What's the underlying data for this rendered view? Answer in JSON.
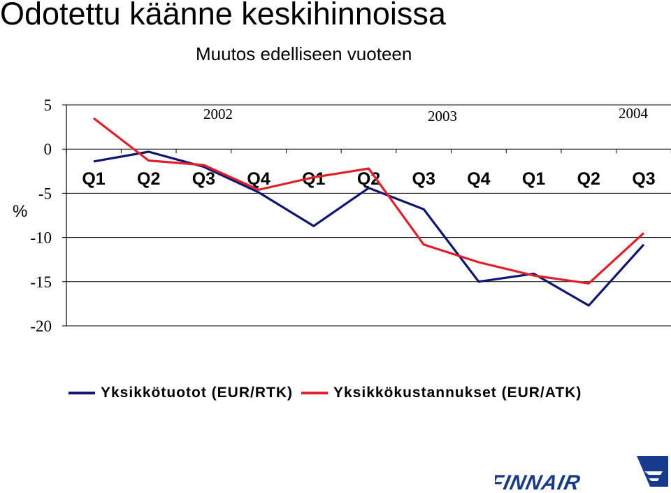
{
  "header": {
    "title": "Odotettu käänne keskihinnoissa",
    "subtitle": "Muutos edelliseen vuoteen"
  },
  "colors": {
    "series1": "#0f1670",
    "series2": "#e0202a",
    "logo": "#173a8c",
    "grid": "#000000"
  },
  "chart_data": {
    "type": "line",
    "title": "Odotettu käänne keskihinnoissa",
    "subtitle": "Muutos edelliseen vuoteen",
    "ylabel": "%",
    "ylim": [
      -20,
      5
    ],
    "yticks": [
      "5",
      "0",
      "-5",
      "-10",
      "-15",
      "-20"
    ],
    "grid": true,
    "legend_position": "bottom",
    "years": [
      "2002",
      "2003",
      "2004"
    ],
    "categories": [
      "Q1",
      "Q2",
      "Q3",
      "Q4",
      "Q1",
      "Q2",
      "Q3",
      "Q4",
      "Q1",
      "Q2",
      "Q3"
    ],
    "series": [
      {
        "name": "Yksikkötuotot (EUR/RTK)",
        "values": [
          -1.4,
          -0.3,
          -2.0,
          -4.9,
          -8.7,
          -4.4,
          -6.8,
          -15.0,
          -14.1,
          -17.7,
          -10.8
        ]
      },
      {
        "name": "Yksikkökustannukset (EUR/ATK)",
        "values": [
          3.5,
          -1.3,
          -1.8,
          -4.6,
          -3.2,
          -2.2,
          -10.8,
          -12.8,
          -14.3,
          -15.2,
          -9.5
        ]
      }
    ]
  },
  "logo": {
    "text": "FINNAIR"
  }
}
